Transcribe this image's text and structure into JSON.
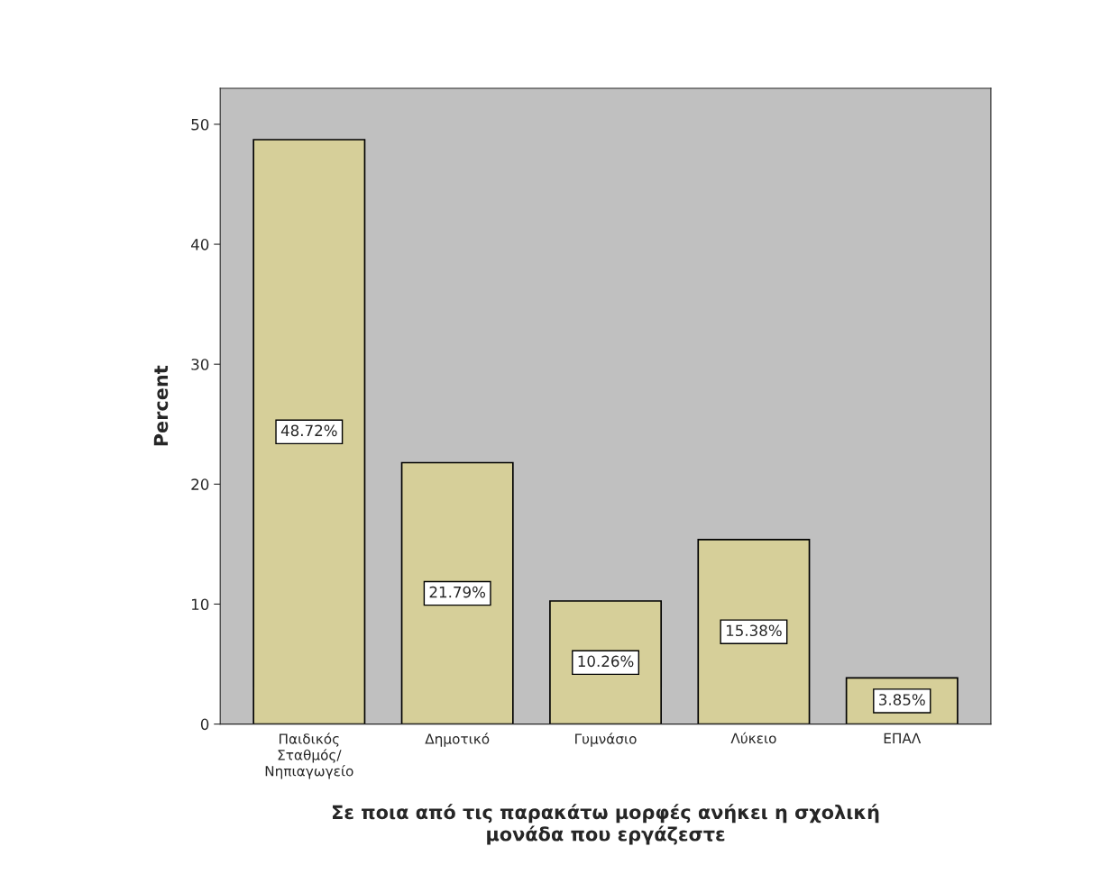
{
  "chart_data": {
    "type": "bar",
    "xlabel": "Σε ποια από τις παρακάτω μορφές ανήκει η σχολική\nμονάδα που εργάζεστε",
    "ylabel": "Percent",
    "categories": [
      "Παιδικός\nΣταθμός/\nΝηπιαγωγείο",
      "Δημοτικό",
      "Γυμνάσιο",
      "Λύκειο",
      "ΕΠΑΛ"
    ],
    "values": [
      48.72,
      21.79,
      10.26,
      15.38,
      3.85
    ],
    "value_labels": [
      "48.72%",
      "21.79%",
      "10.26%",
      "15.38%",
      "3.85%"
    ],
    "color": "#d6cf99",
    "ylim": [
      0,
      53
    ],
    "yticks": [
      0,
      10,
      20,
      30,
      40,
      50
    ],
    "grid": false,
    "legend": false
  }
}
